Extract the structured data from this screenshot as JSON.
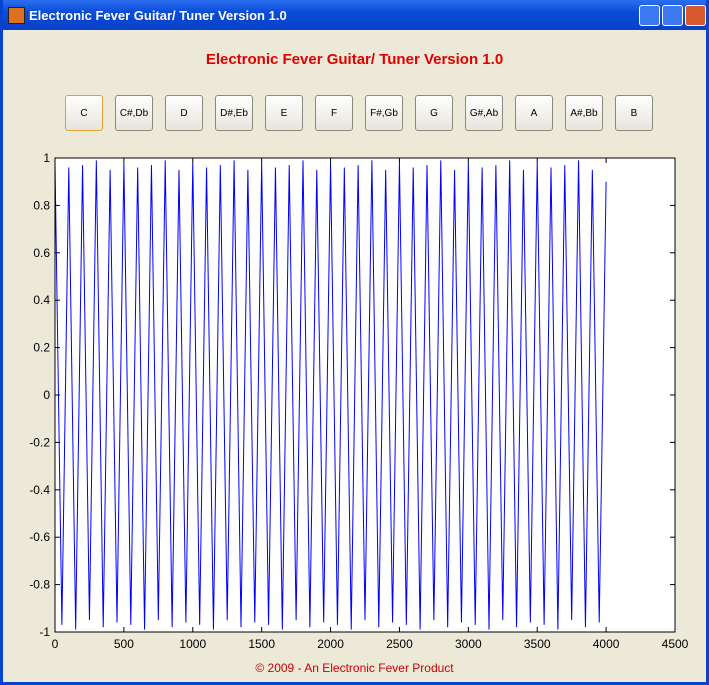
{
  "window": {
    "title": "Electronic Fever Guitar/ Tuner Version 1.0"
  },
  "header": {
    "title": "Electronic Fever Guitar/ Tuner Version 1.0"
  },
  "buttons": [
    "C",
    "C#,Db",
    "D",
    "D#,Eb",
    "E",
    "F",
    "F#,Gb",
    "G",
    "G#,Ab",
    "A",
    "A#,Bb",
    "B"
  ],
  "chart_data": {
    "type": "line",
    "x": [
      0,
      50,
      100,
      150,
      200,
      250,
      300,
      350,
      400,
      450,
      500,
      550,
      600,
      650,
      700,
      750,
      800,
      850,
      900,
      950,
      1000,
      1050,
      1100,
      1150,
      1200,
      1250,
      1300,
      1350,
      1400,
      1450,
      1500,
      1550,
      1600,
      1650,
      1700,
      1750,
      1800,
      1850,
      1900,
      1950,
      2000,
      2050,
      2100,
      2150,
      2200,
      2250,
      2300,
      2350,
      2400,
      2450,
      2500,
      2550,
      2600,
      2650,
      2700,
      2750,
      2800,
      2850,
      2900,
      2950,
      3000,
      3050,
      3100,
      3150,
      3200,
      3250,
      3300,
      3350,
      3400,
      3450,
      3500,
      3550,
      3600,
      3650,
      3700,
      3750,
      3800,
      3850,
      3900,
      3950,
      4000
    ],
    "series": [
      {
        "color": "#0000ff",
        "values": [
          0.98,
          -0.97,
          0.96,
          -0.99,
          0.97,
          -0.95,
          0.99,
          -0.98,
          0.95,
          -0.96,
          0.98,
          -0.97,
          0.96,
          -0.99,
          0.97,
          -0.95,
          0.99,
          -0.98,
          0.95,
          -0.96,
          0.98,
          -0.97,
          0.96,
          -0.99,
          0.97,
          -0.95,
          0.99,
          -0.98,
          0.95,
          -0.96,
          0.98,
          -0.97,
          0.96,
          -0.99,
          0.97,
          -0.95,
          0.99,
          -0.98,
          0.95,
          -0.96,
          0.98,
          -0.97,
          0.96,
          -0.99,
          0.97,
          -0.95,
          0.99,
          -0.98,
          0.95,
          -0.96,
          0.98,
          -0.97,
          0.96,
          -0.99,
          0.97,
          -0.95,
          0.99,
          -0.98,
          0.95,
          -0.96,
          0.98,
          -0.97,
          0.96,
          -0.99,
          0.97,
          -0.95,
          0.99,
          -0.98,
          0.95,
          -0.96,
          0.98,
          -0.97,
          0.96,
          -0.99,
          0.97,
          -0.95,
          0.99,
          -0.98,
          0.95,
          -0.96,
          0.9
        ]
      }
    ],
    "xlim": [
      0,
      4500
    ],
    "ylim": [
      -1,
      1
    ],
    "xticks": [
      0,
      500,
      1000,
      1500,
      2000,
      2500,
      3000,
      3500,
      4000,
      4500
    ],
    "yticks": [
      -1,
      -0.8,
      -0.6,
      -0.4,
      -0.2,
      0,
      0.2,
      0.4,
      0.6,
      0.8,
      1
    ]
  },
  "footer": "© 2009 - An Electronic Fever Product"
}
